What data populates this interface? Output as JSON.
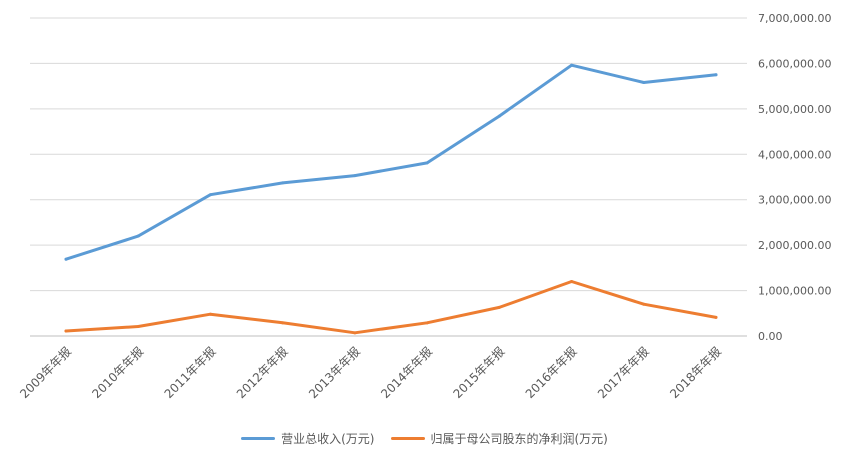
{
  "chart_data": {
    "type": "line",
    "categories": [
      "2009年年报",
      "2010年年报",
      "2011年年报",
      "2012年年报",
      "2013年年报",
      "2014年年报",
      "2015年年报",
      "2016年年报",
      "2017年年报",
      "2018年年报"
    ],
    "series": [
      {
        "name": "营业总收入(万元)",
        "color": "#5b9bd5",
        "values": [
          1690000,
          2200000,
          3110000,
          3370000,
          3530000,
          3810000,
          4840000,
          5960000,
          5580000,
          5750000
        ]
      },
      {
        "name": "归属于母公司股东的净利润(万元)",
        "color": "#ed7d31",
        "values": [
          110000,
          210000,
          480000,
          290000,
          70000,
          290000,
          630000,
          1200000,
          700000,
          410000
        ]
      }
    ],
    "y_ticks": [
      "0.00",
      "1,000,000.00",
      "2,000,000.00",
      "3,000,000.00",
      "4,000,000.00",
      "5,000,000.00",
      "6,000,000.00",
      "7,000,000.00"
    ],
    "ylim": [
      0,
      7000000
    ],
    "y_axis_side": "right",
    "grid": true,
    "legend_position": "bottom"
  }
}
